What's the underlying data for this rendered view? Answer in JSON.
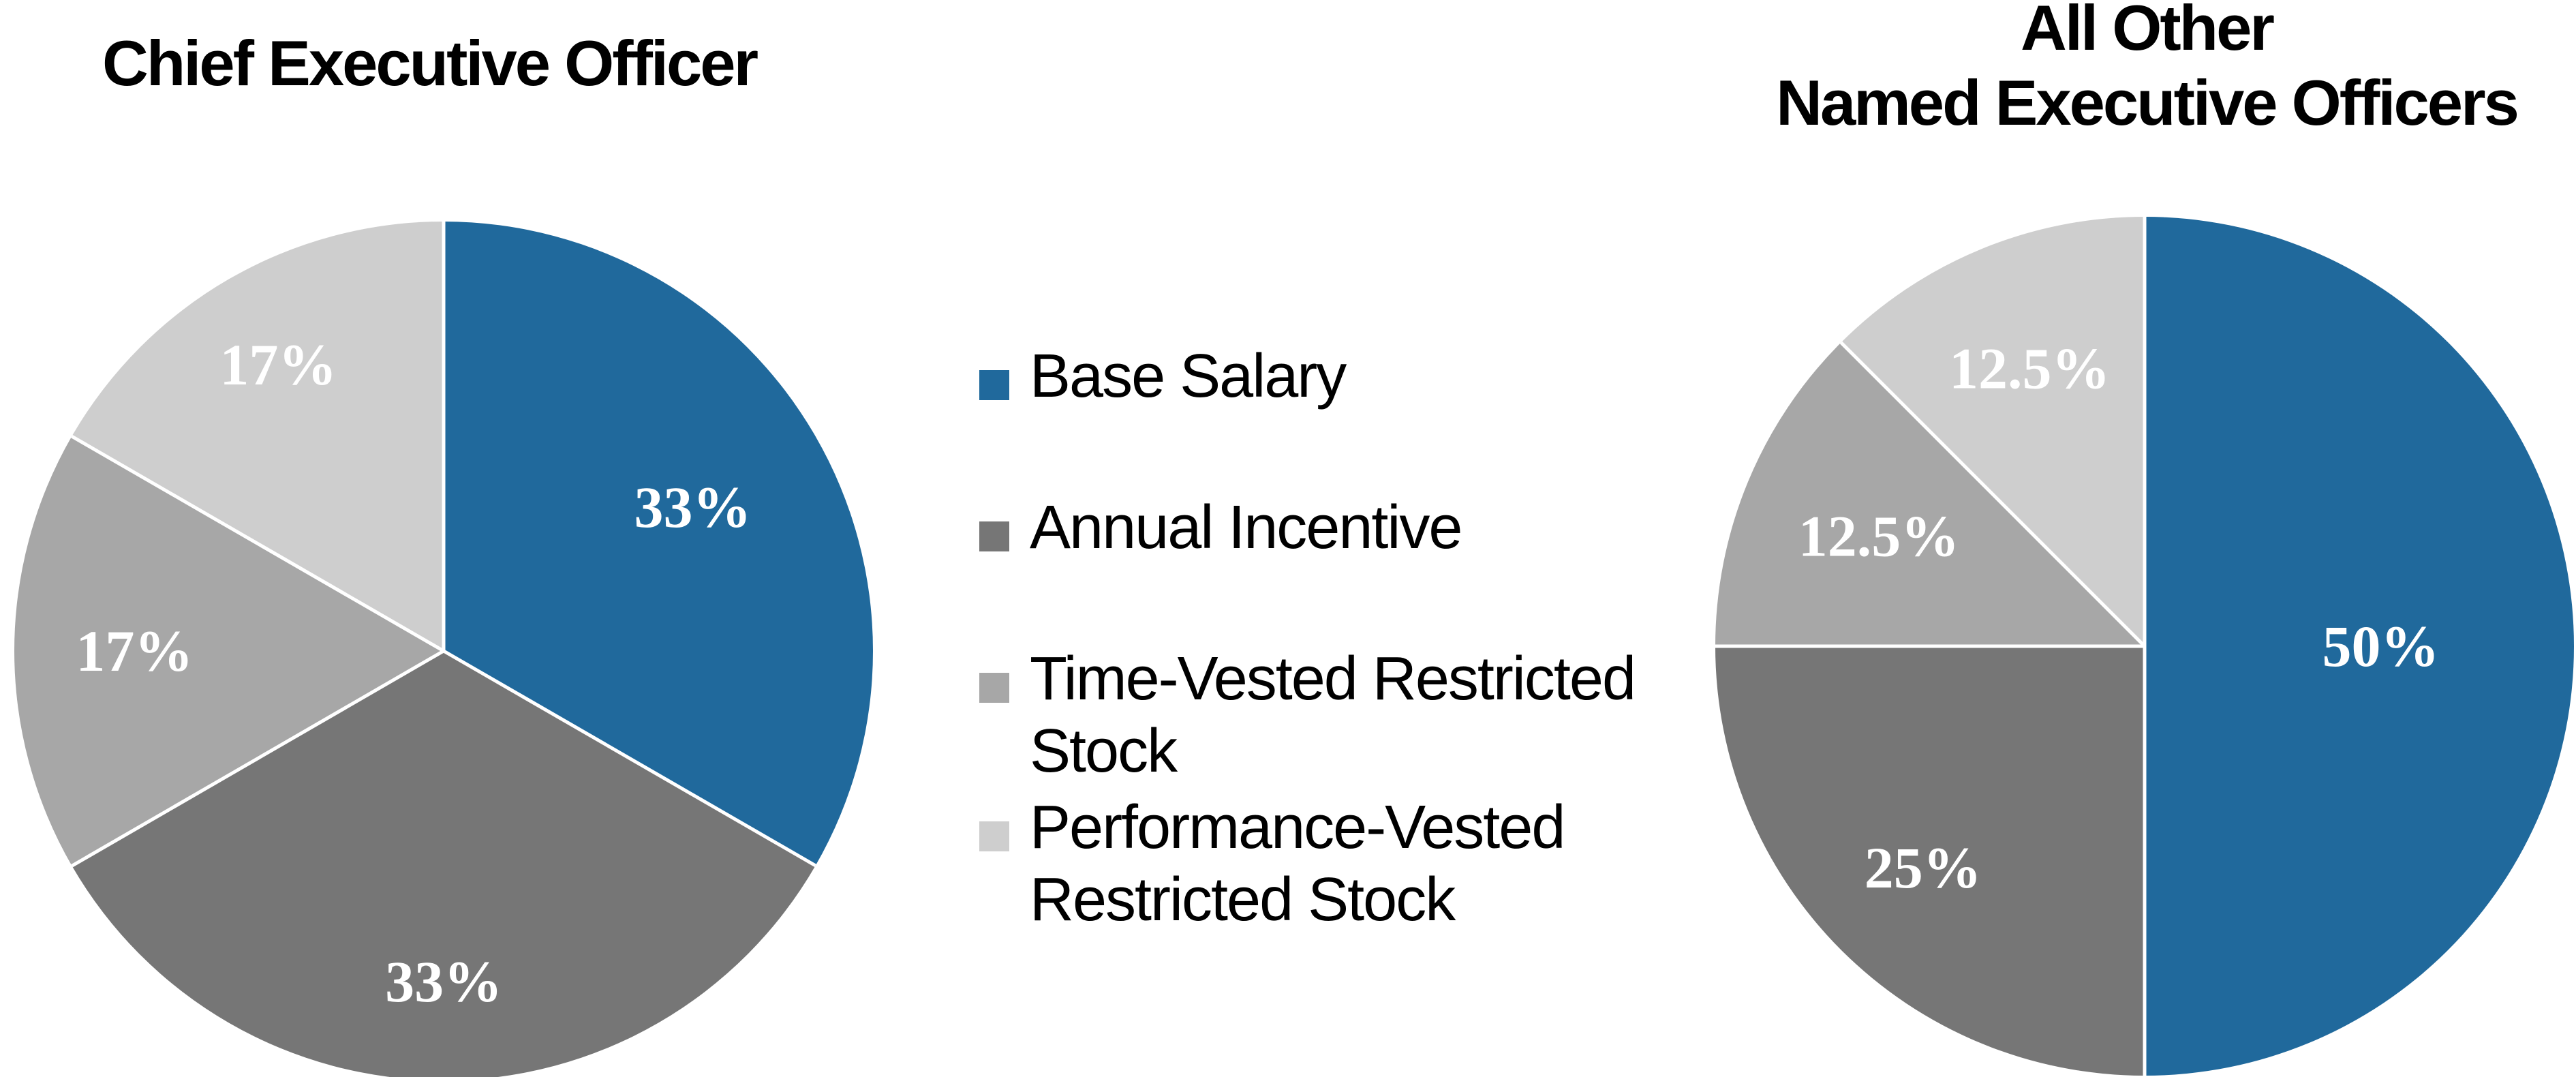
{
  "page": {
    "background": "#FFFFFF"
  },
  "palette": {
    "blue": "#20699C",
    "dark_gray": "#767676",
    "medium_gray": "#A7A7A7",
    "light_gray": "#CECECE",
    "separator": "#FFFFFF",
    "label_text": "#FFFFFF",
    "title_text": "#000000"
  },
  "legend": {
    "items": [
      {
        "label": "Base Salary",
        "color": "#20699C"
      },
      {
        "label": "Annual Incentive",
        "color": "#767676"
      },
      {
        "label": "Time-Vested Restricted Stock",
        "color": "#A7A7A7"
      },
      {
        "label": "Performance-Vested Restricted Stock",
        "color": "#CECECE"
      }
    ]
  },
  "chart_data": [
    {
      "type": "pie",
      "title": "Chief Executive Officer",
      "title_lines": [
        "Chief Executive Officer"
      ],
      "categories": [
        "Base Salary",
        "Annual Incentive",
        "Time-Vested Restricted Stock",
        "Performance-Vested Restricted Stock"
      ],
      "values": [
        33.33,
        33.33,
        16.67,
        16.67
      ],
      "slice_labels": [
        "33%",
        "33%",
        "17%",
        "17%"
      ],
      "colors": [
        "#20699C",
        "#767676",
        "#A7A7A7",
        "#CECECE"
      ],
      "start_angle_deg": 0,
      "direction": "clockwise",
      "label_position": "inside",
      "label_color": "#FFFFFF",
      "separator_color": "#FFFFFF",
      "label_radius_factors": [
        0.67,
        0.77,
        0.72,
        0.77
      ],
      "legend_position": "center-between-charts",
      "grid": false
    },
    {
      "type": "pie",
      "title": "All Other Named Executive Officers",
      "title_lines": [
        "All Other",
        "Named Executive Officers"
      ],
      "categories": [
        "Base Salary",
        "Annual Incentive",
        "Time-Vested Restricted Stock",
        "Performance-Vested Restricted Stock"
      ],
      "values": [
        50,
        25,
        12.5,
        12.5
      ],
      "slice_labels": [
        "50%",
        "25%",
        "12.5%",
        "12.5%"
      ],
      "colors": [
        "#20699C",
        "#767676",
        "#A7A7A7",
        "#CECECE"
      ],
      "start_angle_deg": 0,
      "direction": "clockwise",
      "label_position": "inside",
      "label_color": "#FFFFFF",
      "separator_color": "#FFFFFF",
      "label_radius_factors": [
        0.55,
        0.73,
        0.67,
        0.7
      ],
      "legend_position": "center-between-charts",
      "grid": false
    }
  ]
}
